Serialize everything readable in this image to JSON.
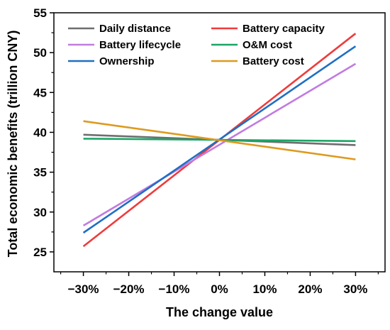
{
  "chart_data": {
    "type": "line",
    "xlabel": "The change value",
    "ylabel": "Total economic benefits (trillion CNY)",
    "x": [
      -30,
      30
    ],
    "xticks": [
      -30,
      -20,
      -10,
      0,
      10,
      20,
      30
    ],
    "xtick_labels": [
      "−30%",
      "−20%",
      "−10%",
      "0%",
      "10%",
      "20%",
      "30%"
    ],
    "xlim": [
      -36.5,
      36.5
    ],
    "ylim": [
      22.5,
      55
    ],
    "yticks": [
      25,
      30,
      35,
      40,
      45,
      50,
      55
    ],
    "ytick_labels": [
      "25",
      "30",
      "35",
      "40",
      "45",
      "50",
      "55"
    ],
    "grid": false,
    "legend_position": "top",
    "series": [
      {
        "name": "Daily distance",
        "color": "#6e6e6e",
        "values": [
          39.7,
          38.4
        ]
      },
      {
        "name": "Battery capacity",
        "color": "#ef3b3b",
        "values": [
          25.7,
          52.4
        ]
      },
      {
        "name": "Battery lifecycle",
        "color": "#c17be0",
        "values": [
          28.3,
          48.6
        ]
      },
      {
        "name": "O&M cost",
        "color": "#1aa666",
        "values": [
          39.2,
          38.9
        ]
      },
      {
        "name": "Ownership",
        "color": "#1f6fc4",
        "values": [
          27.4,
          50.8
        ]
      },
      {
        "name": "Battery cost",
        "color": "#de9a1f",
        "values": [
          41.4,
          36.6
        ]
      }
    ]
  }
}
